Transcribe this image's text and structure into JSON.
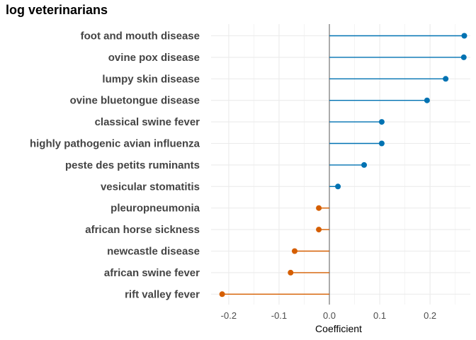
{
  "chart_data": {
    "type": "lollipop",
    "title": "log veterinarians",
    "xlabel": "Coefficient",
    "ylabel": "",
    "xlim": [
      -0.235,
      0.28
    ],
    "xticks": [
      -0.2,
      -0.1,
      0.0,
      0.1,
      0.2
    ],
    "xtick_labels": [
      "-0.2",
      "-0.1",
      "0.0",
      "0.1",
      "0.2"
    ],
    "grid": true,
    "legend": "none",
    "categories": [
      "foot and mouth disease",
      "ovine pox disease",
      "lumpy skin disease",
      "ovine bluetongue disease",
      "classical swine fever",
      "highly pathogenic avian influenza",
      "peste des petits ruminants",
      "vesicular stomatitis",
      "pleuropneumonia",
      "african horse sickness",
      "newcastle disease",
      "african swine fever",
      "rift valley fever"
    ],
    "values": [
      0.268,
      0.267,
      0.231,
      0.194,
      0.104,
      0.104,
      0.069,
      0.017,
      -0.021,
      -0.021,
      -0.069,
      -0.077,
      -0.213
    ],
    "colors": {
      "positive": "#0072B2",
      "negative": "#D55E00"
    }
  }
}
